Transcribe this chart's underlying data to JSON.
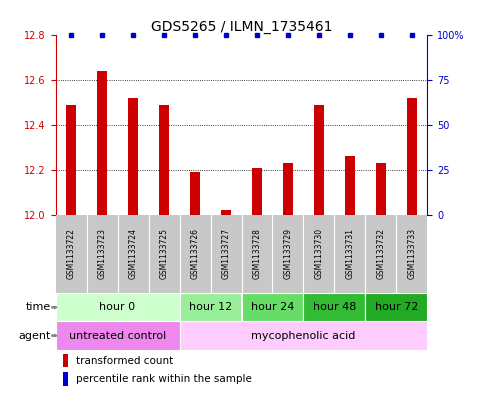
{
  "title": "GDS5265 / ILMN_1735461",
  "samples": [
    "GSM1133722",
    "GSM1133723",
    "GSM1133724",
    "GSM1133725",
    "GSM1133726",
    "GSM1133727",
    "GSM1133728",
    "GSM1133729",
    "GSM1133730",
    "GSM1133731",
    "GSM1133732",
    "GSM1133733"
  ],
  "bar_values": [
    12.49,
    12.64,
    12.52,
    12.49,
    12.19,
    12.02,
    12.21,
    12.23,
    12.49,
    12.26,
    12.23,
    12.52
  ],
  "percentile_values": [
    100,
    100,
    100,
    100,
    100,
    100,
    100,
    100,
    100,
    100,
    100,
    100
  ],
  "bar_color": "#cc0000",
  "percentile_color": "#0000cc",
  "ylim_left": [
    12.0,
    12.8
  ],
  "ylim_right": [
    0,
    100
  ],
  "yticks_left": [
    12.0,
    12.2,
    12.4,
    12.6,
    12.8
  ],
  "yticks_right": [
    0,
    25,
    50,
    75,
    100
  ],
  "ytick_labels_right": [
    "0",
    "25",
    "50",
    "75",
    "100%"
  ],
  "grid_values": [
    12.2,
    12.4,
    12.6
  ],
  "time_groups": [
    {
      "label": "hour 0",
      "start": 0,
      "end": 4,
      "color": "#ccffcc"
    },
    {
      "label": "hour 12",
      "start": 4,
      "end": 6,
      "color": "#99ee99"
    },
    {
      "label": "hour 24",
      "start": 6,
      "end": 8,
      "color": "#66dd66"
    },
    {
      "label": "hour 48",
      "start": 8,
      "end": 10,
      "color": "#33bb33"
    },
    {
      "label": "hour 72",
      "start": 10,
      "end": 12,
      "color": "#22aa22"
    }
  ],
  "agent_groups": [
    {
      "label": "untreated control",
      "start": 0,
      "end": 4,
      "color": "#ee88ee"
    },
    {
      "label": "mycophenolic acid",
      "start": 4,
      "end": 12,
      "color": "#ffccff"
    }
  ],
  "legend_bar_label": "transformed count",
  "legend_pct_label": "percentile rank within the sample",
  "row_label_time": "time",
  "row_label_agent": "agent",
  "bar_width": 0.35,
  "background_color": "#ffffff",
  "sample_box_color": "#c8c8c8",
  "title_fontsize": 10,
  "tick_fontsize": 7,
  "label_fontsize": 8,
  "sample_fontsize": 5.5,
  "legend_fontsize": 7.5
}
